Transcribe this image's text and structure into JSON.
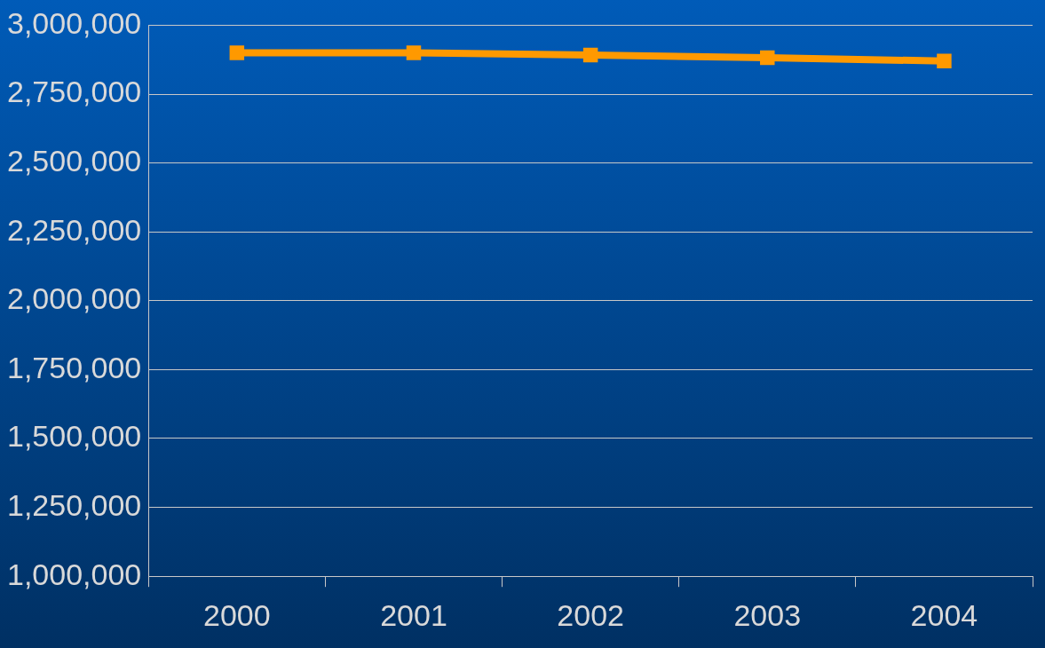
{
  "chart_data": {
    "type": "line",
    "categories": [
      "2000",
      "2001",
      "2002",
      "2003",
      "2004"
    ],
    "series": [
      {
        "color": "#ff9900",
        "values": [
          2900000,
          2900000,
          2892000,
          2882000,
          2870000
        ]
      }
    ],
    "ylim": [
      1000000,
      3000000
    ],
    "yticks": [
      {
        "value": 1000000,
        "label": "1,000,000"
      },
      {
        "value": 1250000,
        "label": "1,250,000"
      },
      {
        "value": 1500000,
        "label": "1,500,000"
      },
      {
        "value": 1750000,
        "label": "1,750,000"
      },
      {
        "value": 2000000,
        "label": "2,000,000"
      },
      {
        "value": 2250000,
        "label": "2,250,000"
      },
      {
        "value": 2500000,
        "label": "2,500,000"
      },
      {
        "value": 2750000,
        "label": "2,750,000"
      },
      {
        "value": 3000000,
        "label": "3,000,000"
      }
    ],
    "grid": "y",
    "legend": false,
    "marker": "square",
    "line_style": "solid"
  }
}
